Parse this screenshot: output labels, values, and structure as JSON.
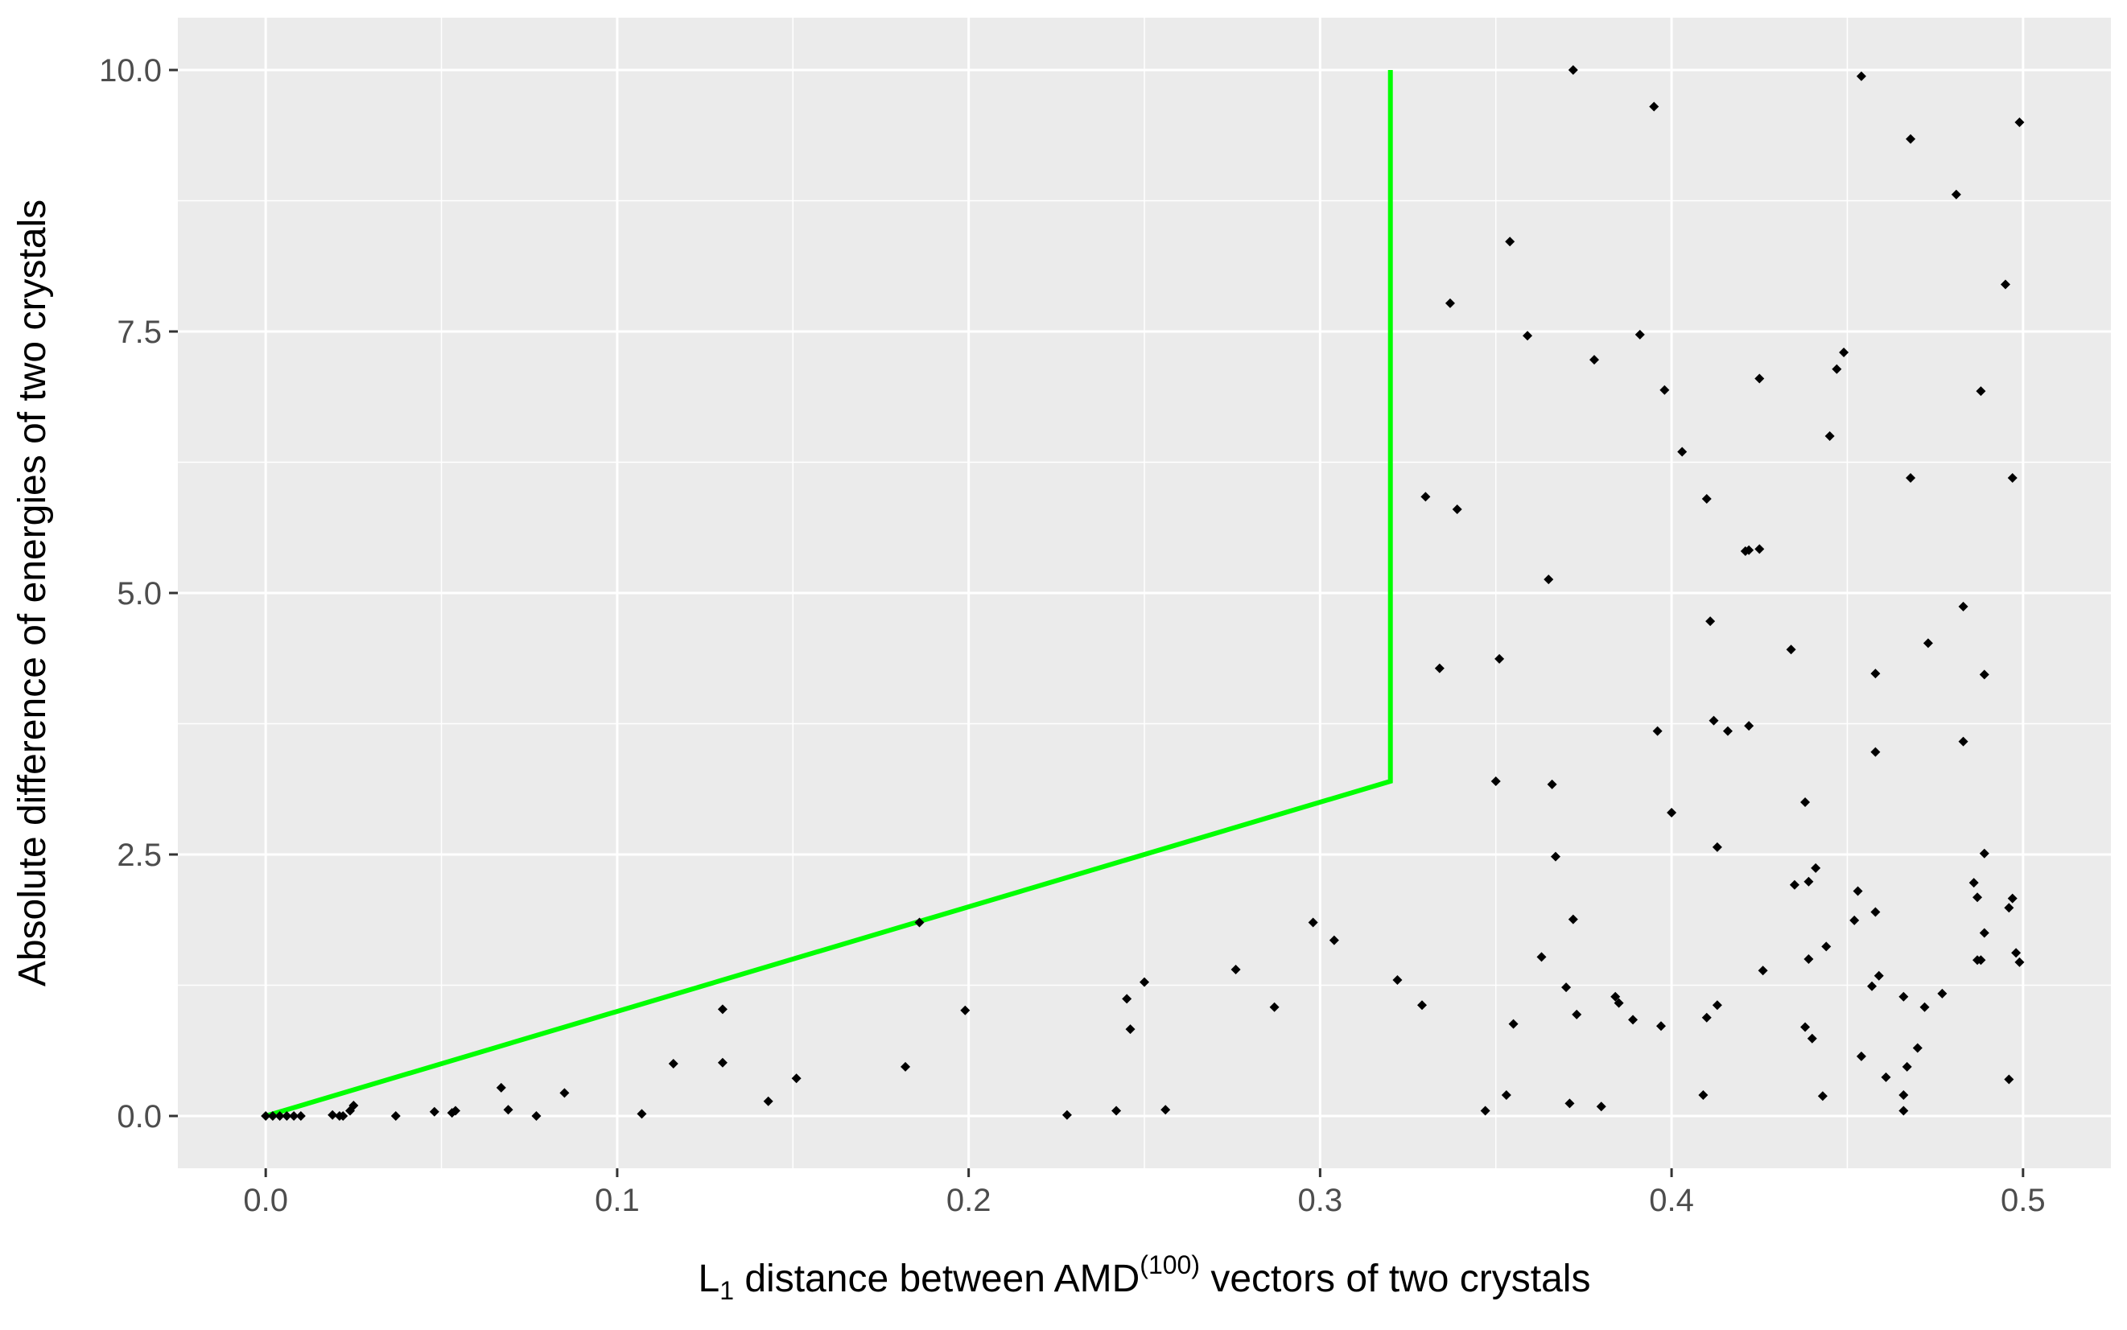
{
  "chart_data": {
    "type": "scatter",
    "title": "",
    "xlabel": {
      "prefix": "L",
      "sub": "1",
      "middle": " distance between AMD",
      "sup": "(100)",
      "suffix": " vectors of two crystals"
    },
    "ylabel": "Absolute difference of energies of two crystals",
    "xlim": [
      -0.025,
      0.525
    ],
    "ylim": [
      -0.5,
      10.5
    ],
    "x_ticks": [
      0.0,
      0.1,
      0.2,
      0.3,
      0.4,
      0.5
    ],
    "x_tick_labels": [
      "0.0",
      "0.1",
      "0.2",
      "0.3",
      "0.4",
      "0.5"
    ],
    "y_ticks": [
      0.0,
      2.5,
      5.0,
      7.5,
      10.0
    ],
    "y_tick_labels": [
      "0.0",
      "2.5",
      "5.0",
      "7.5",
      "10.0"
    ],
    "grid": true,
    "legend": "none",
    "colors": {
      "panel": "#ebebeb",
      "grid": "#ffffff",
      "points": "#000000",
      "boundary": "#00ff00"
    },
    "boundary_line": {
      "x": [
        0.0,
        0.32,
        0.32
      ],
      "y": [
        0.0,
        3.2,
        10.0
      ]
    },
    "points": [
      [
        0.0,
        0.0
      ],
      [
        0.002,
        0.0
      ],
      [
        0.004,
        0.0
      ],
      [
        0.006,
        0.0
      ],
      [
        0.008,
        0.0
      ],
      [
        0.01,
        0.0
      ],
      [
        0.019,
        0.01
      ],
      [
        0.021,
        0.0
      ],
      [
        0.022,
        0.0
      ],
      [
        0.024,
        0.05
      ],
      [
        0.025,
        0.1
      ],
      [
        0.037,
        0.0
      ],
      [
        0.048,
        0.04
      ],
      [
        0.053,
        0.03
      ],
      [
        0.054,
        0.05
      ],
      [
        0.067,
        0.27
      ],
      [
        0.069,
        0.06
      ],
      [
        0.077,
        0.0
      ],
      [
        0.085,
        0.22
      ],
      [
        0.107,
        0.02
      ],
      [
        0.116,
        0.5
      ],
      [
        0.13,
        1.02
      ],
      [
        0.13,
        0.51
      ],
      [
        0.143,
        0.14
      ],
      [
        0.151,
        0.36
      ],
      [
        0.182,
        0.47
      ],
      [
        0.186,
        1.85
      ],
      [
        0.199,
        1.01
      ],
      [
        0.228,
        0.01
      ],
      [
        0.242,
        0.05
      ],
      [
        0.245,
        1.12
      ],
      [
        0.246,
        0.83
      ],
      [
        0.25,
        1.28
      ],
      [
        0.256,
        0.06
      ],
      [
        0.276,
        1.4
      ],
      [
        0.287,
        1.04
      ],
      [
        0.298,
        1.85
      ],
      [
        0.304,
        1.68
      ],
      [
        0.322,
        1.3
      ],
      [
        0.329,
        1.06
      ],
      [
        0.33,
        5.92
      ],
      [
        0.334,
        4.28
      ],
      [
        0.337,
        7.77
      ],
      [
        0.339,
        5.8
      ],
      [
        0.347,
        0.05
      ],
      [
        0.35,
        3.2
      ],
      [
        0.351,
        4.37
      ],
      [
        0.353,
        0.2
      ],
      [
        0.354,
        8.36
      ],
      [
        0.355,
        0.88
      ],
      [
        0.359,
        7.46
      ],
      [
        0.363,
        1.52
      ],
      [
        0.365,
        5.13
      ],
      [
        0.366,
        3.17
      ],
      [
        0.367,
        2.48
      ],
      [
        0.37,
        1.23
      ],
      [
        0.371,
        0.12
      ],
      [
        0.372,
        10.0
      ],
      [
        0.372,
        1.88
      ],
      [
        0.373,
        0.97
      ],
      [
        0.378,
        7.23
      ],
      [
        0.38,
        0.09
      ],
      [
        0.384,
        1.14
      ],
      [
        0.385,
        1.08
      ],
      [
        0.389,
        0.92
      ],
      [
        0.391,
        7.47
      ],
      [
        0.395,
        9.65
      ],
      [
        0.396,
        3.68
      ],
      [
        0.397,
        0.86
      ],
      [
        0.398,
        6.94
      ],
      [
        0.4,
        2.9
      ],
      [
        0.403,
        6.35
      ],
      [
        0.409,
        0.2
      ],
      [
        0.41,
        5.9
      ],
      [
        0.41,
        0.94
      ],
      [
        0.411,
        4.73
      ],
      [
        0.412,
        3.78
      ],
      [
        0.413,
        2.57
      ],
      [
        0.413,
        1.06
      ],
      [
        0.416,
        3.68
      ],
      [
        0.421,
        5.4
      ],
      [
        0.422,
        5.41
      ],
      [
        0.422,
        3.73
      ],
      [
        0.425,
        5.42
      ],
      [
        0.425,
        7.05
      ],
      [
        0.426,
        1.39
      ],
      [
        0.434,
        4.46
      ],
      [
        0.435,
        2.21
      ],
      [
        0.438,
        0.85
      ],
      [
        0.438,
        3.0
      ],
      [
        0.439,
        1.5
      ],
      [
        0.439,
        2.24
      ],
      [
        0.44,
        0.74
      ],
      [
        0.441,
        2.37
      ],
      [
        0.443,
        0.19
      ],
      [
        0.444,
        1.62
      ],
      [
        0.445,
        6.5
      ],
      [
        0.447,
        7.14
      ],
      [
        0.449,
        7.3
      ],
      [
        0.452,
        1.87
      ],
      [
        0.453,
        2.15
      ],
      [
        0.454,
        9.94
      ],
      [
        0.454,
        0.57
      ],
      [
        0.457,
        1.24
      ],
      [
        0.458,
        1.95
      ],
      [
        0.458,
        4.23
      ],
      [
        0.458,
        3.48
      ],
      [
        0.459,
        1.34
      ],
      [
        0.461,
        0.37
      ],
      [
        0.466,
        0.05
      ],
      [
        0.466,
        0.2
      ],
      [
        0.466,
        1.14
      ],
      [
        0.467,
        0.47
      ],
      [
        0.468,
        6.1
      ],
      [
        0.468,
        9.34
      ],
      [
        0.47,
        0.65
      ],
      [
        0.472,
        1.04
      ],
      [
        0.473,
        4.52
      ],
      [
        0.477,
        1.17
      ],
      [
        0.481,
        8.81
      ],
      [
        0.483,
        4.87
      ],
      [
        0.483,
        3.58
      ],
      [
        0.486,
        2.23
      ],
      [
        0.487,
        1.49
      ],
      [
        0.487,
        2.09
      ],
      [
        0.488,
        6.93
      ],
      [
        0.488,
        1.49
      ],
      [
        0.489,
        1.75
      ],
      [
        0.489,
        4.22
      ],
      [
        0.489,
        2.51
      ],
      [
        0.495,
        7.95
      ],
      [
        0.496,
        1.99
      ],
      [
        0.496,
        0.35
      ],
      [
        0.497,
        2.08
      ],
      [
        0.497,
        6.1
      ],
      [
        0.498,
        1.56
      ],
      [
        0.499,
        9.5
      ],
      [
        0.499,
        1.47
      ]
    ]
  }
}
